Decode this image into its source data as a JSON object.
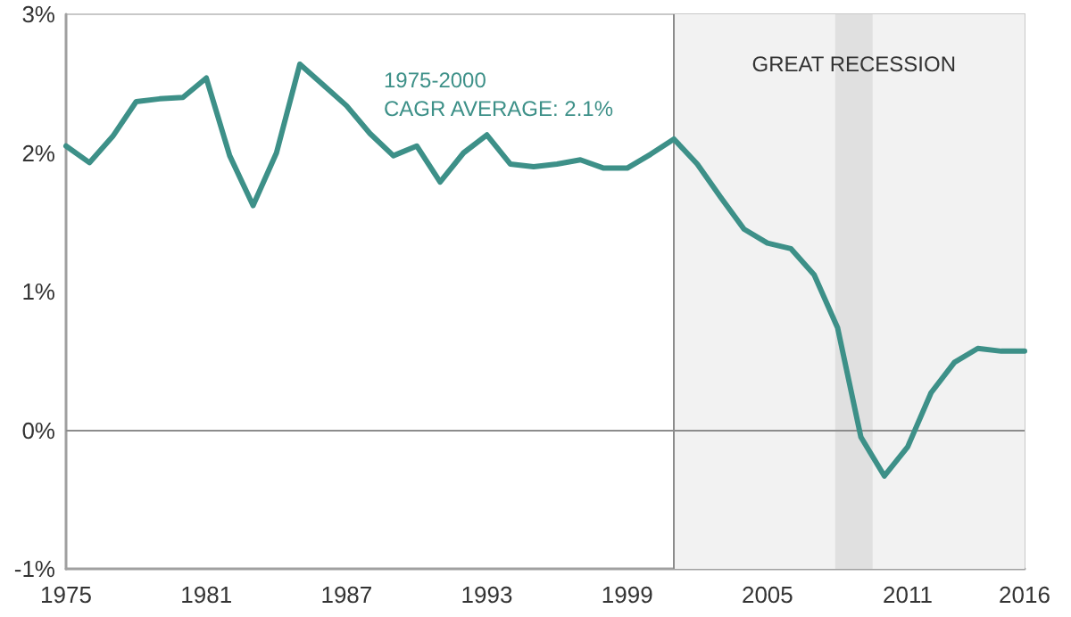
{
  "chart_data": {
    "type": "line",
    "x": [
      1975,
      1976,
      1977,
      1978,
      1979,
      1980,
      1981,
      1982,
      1983,
      1984,
      1985,
      1986,
      1987,
      1988,
      1989,
      1990,
      1991,
      1992,
      1993,
      1994,
      1995,
      1996,
      1997,
      1998,
      1999,
      2000,
      2001,
      2002,
      2003,
      2004,
      2005,
      2006,
      2007,
      2008,
      2009,
      2010,
      2011,
      2012,
      2013,
      2014,
      2015,
      2016
    ],
    "series": [
      {
        "color": "#3d9088",
        "values": [
          2.05,
          1.93,
          2.12,
          2.37,
          2.39,
          2.4,
          2.54,
          1.98,
          1.62,
          2.0,
          2.64,
          2.49,
          2.34,
          2.14,
          1.98,
          2.05,
          1.79,
          2.0,
          2.13,
          1.92,
          1.9,
          1.92,
          1.95,
          1.89,
          1.89,
          1.99,
          2.1,
          1.92,
          1.68,
          1.45,
          1.35,
          1.31,
          1.12,
          0.74,
          -0.05,
          -0.33,
          -0.12,
          0.27,
          0.49,
          0.59,
          0.57,
          0.57
        ]
      }
    ],
    "xlim": [
      1975,
      2016
    ],
    "xticks": [
      1975,
      1981,
      1987,
      1993,
      1999,
      2005,
      2011,
      2016
    ],
    "ylim": [
      -1,
      3
    ],
    "yticks": [
      {
        "value": -1,
        "label": "-1%"
      },
      {
        "value": 0,
        "label": "0%"
      },
      {
        "value": 1,
        "label": "1%"
      },
      {
        "value": 2,
        "label": "2%"
      },
      {
        "value": 3,
        "label": "3%"
      }
    ],
    "bands": [
      {
        "axis": "x",
        "from": 2001,
        "to": 2016,
        "color": "#f2f2f2"
      },
      {
        "axis": "x",
        "from": 2007.9,
        "to": 2009.5,
        "color": "#e0e0e0",
        "label": "GREAT RECESSION"
      }
    ],
    "ref_lines": [
      {
        "axis": "x",
        "value": 2001,
        "color": "#8c8c8c"
      },
      {
        "axis": "y",
        "value": 0,
        "color": "#8c8c8c"
      }
    ],
    "annotations": [
      "1975-2000\nCAGR AVERAGE: 2.1%"
    ],
    "line_style": "solid"
  }
}
